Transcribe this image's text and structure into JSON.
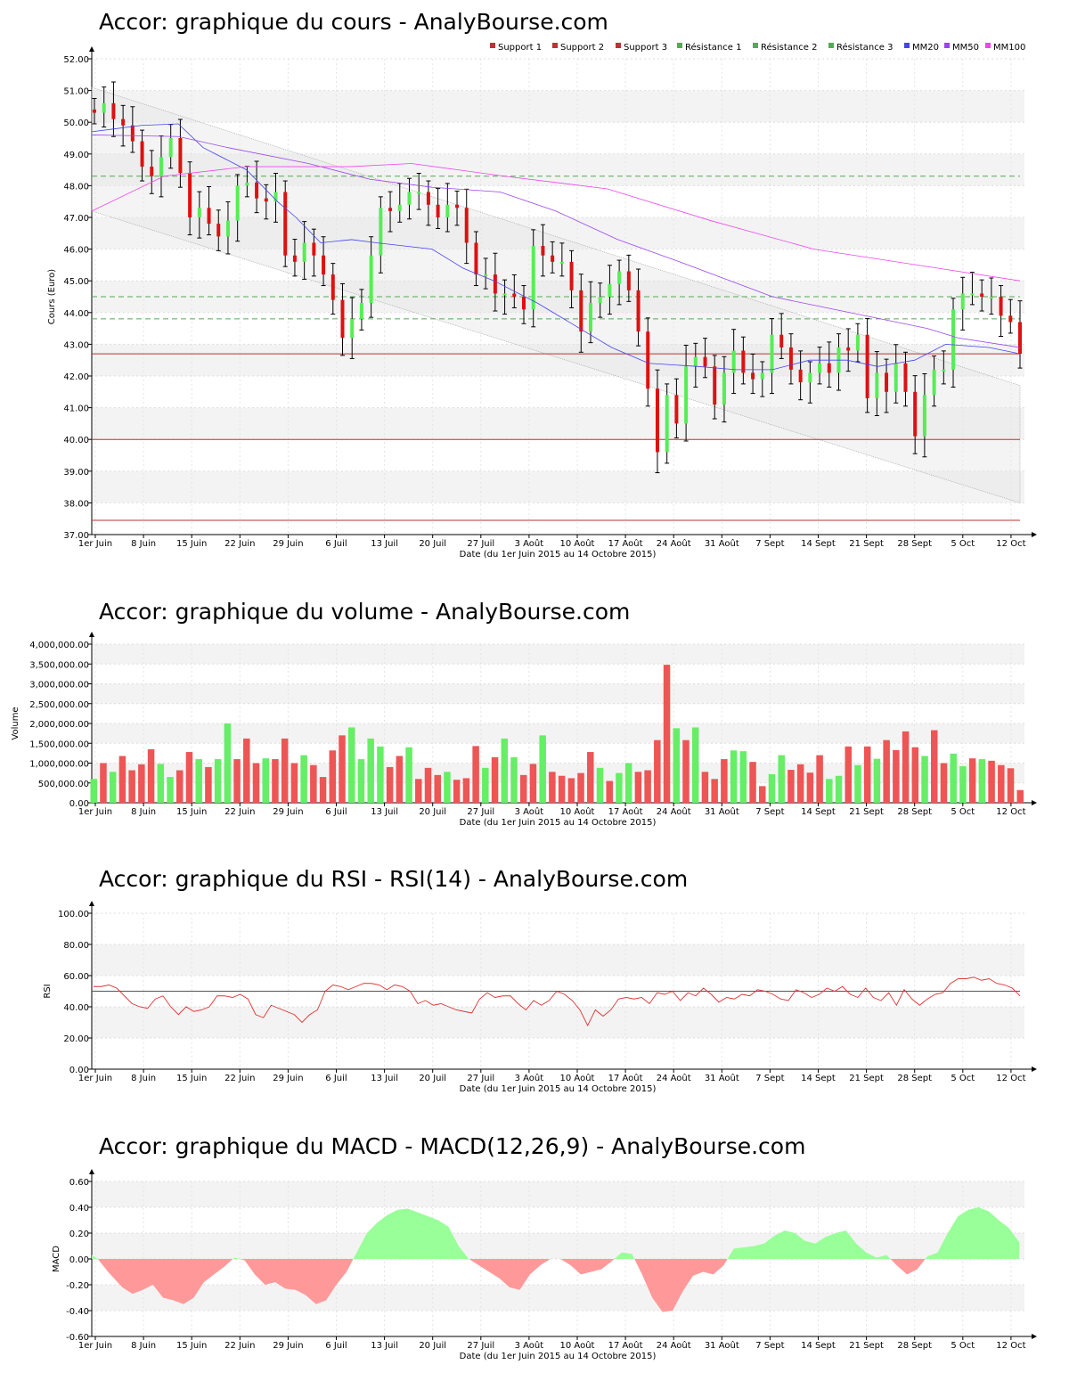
{
  "titles": {
    "price": "Accor: graphique du cours - AnalyBourse.com",
    "volume": "Accor: graphique du volume - AnalyBourse.com",
    "rsi": "Accor: graphique du RSI - RSI(14) - AnalyBourse.com",
    "macd": "Accor: graphique du MACD - MACD(12,26,9) - AnalyBourse.com"
  },
  "colors": {
    "up": "#55ee55",
    "down": "#dd1111",
    "vol_up": "#66ee66",
    "vol_down": "#ee5555",
    "mm20": "#4444ee",
    "mm50": "#9944ee",
    "mm100": "#ee44ee",
    "support": "#bb3333",
    "resistance": "#55aa55",
    "macd_pos": "#99ff99",
    "macd_neg": "#ff9999",
    "rsi_line": "#dd3333"
  },
  "chart_data": [
    {
      "type": "candlestick",
      "title": "Accor: graphique du cours - AnalyBourse.com",
      "ylabel": "Cours (Euro)",
      "xlabel": "Date (du 1er Juin 2015 au 14 Octobre 2015)",
      "ylim": [
        37,
        52
      ],
      "yticks": [
        "37.00",
        "38.00",
        "39.00",
        "40.00",
        "41.00",
        "42.00",
        "43.00",
        "44.00",
        "45.00",
        "46.00",
        "47.00",
        "48.00",
        "49.00",
        "50.00",
        "51.00",
        "52.00"
      ],
      "xtick_labels": [
        "1er Juin",
        "8 Juin",
        "15 Juin",
        "22 Juin",
        "29 Juin",
        "6 Juil",
        "13 Juil",
        "20 Juil",
        "27 Juil",
        "3 Août",
        "10 Août",
        "17 Août",
        "24 Août",
        "31 Août",
        "7 Sept",
        "14 Sept",
        "21 Sept",
        "28 Sept",
        "5 Oct",
        "12 Oct"
      ],
      "legend": [
        "Support 1",
        "Support 2",
        "Support 3",
        "Résistance 1",
        "Résistance 2",
        "Résistance 3",
        "MM20",
        "MM50",
        "MM100"
      ],
      "legend_position": "top-right",
      "support_levels": [
        42.7,
        40.0,
        37.45
      ],
      "resistance_levels": [
        48.3,
        44.5,
        43.8
      ],
      "close": [
        50.3,
        50.6,
        50.1,
        49.9,
        49.4,
        48.6,
        48.3,
        48.9,
        49.5,
        48.4,
        47.0,
        47.3,
        46.8,
        46.4,
        46.9,
        48.0,
        48.1,
        47.6,
        47.5,
        47.8,
        45.8,
        45.6,
        46.2,
        45.8,
        45.2,
        44.4,
        43.2,
        43.8,
        44.3,
        45.8,
        47.3,
        47.2,
        47.4,
        47.8,
        47.8,
        47.4,
        47.0,
        47.4,
        47.3,
        46.2,
        45.2,
        45.2,
        44.6,
        44.6,
        44.5,
        44.1,
        46.1,
        45.8,
        45.6,
        45.6,
        44.7,
        43.4,
        44.3,
        44.5,
        44.9,
        45.3,
        44.7,
        43.4,
        41.6,
        39.6,
        41.4,
        40.5,
        42.3,
        42.6,
        42.3,
        41.1,
        42.1,
        42.8,
        42.1,
        41.9,
        42.1,
        43.3,
        42.9,
        42.2,
        41.8,
        42.1,
        42.4,
        42.1,
        42.9,
        42.8,
        43.3,
        41.3,
        42.1,
        41.5,
        42.4,
        41.5,
        40.1,
        41.4,
        42.2,
        42.2,
        44.1,
        44.6,
        44.6,
        44.5,
        44.5,
        43.9,
        43.7,
        42.7
      ],
      "ma20_points": [
        [
          0,
          49.7
        ],
        [
          8,
          49.9
        ],
        [
          14,
          49.95
        ],
        [
          18,
          49.2
        ],
        [
          25,
          48.5
        ],
        [
          30,
          47.5
        ],
        [
          33,
          47.0
        ],
        [
          37,
          46.2
        ],
        [
          42,
          46.3
        ],
        [
          46,
          46.2
        ],
        [
          55,
          46.0
        ],
        [
          60,
          45.4
        ],
        [
          65,
          45.0
        ],
        [
          72,
          44.3
        ],
        [
          78,
          43.6
        ],
        [
          84,
          42.9
        ],
        [
          90,
          42.4
        ],
        [
          98,
          42.3
        ],
        [
          104,
          42.2
        ],
        [
          110,
          42.2
        ],
        [
          116,
          42.5
        ],
        [
          122,
          42.5
        ],
        [
          127,
          42.3
        ],
        [
          133,
          42.5
        ],
        [
          138,
          43.0
        ],
        [
          145,
          42.9
        ],
        [
          150,
          42.7
        ]
      ],
      "ma50_points": [
        [
          0,
          49.6
        ],
        [
          14,
          49.55
        ],
        [
          22,
          49.2
        ],
        [
          35,
          48.7
        ],
        [
          45,
          48.2
        ],
        [
          55,
          47.95
        ],
        [
          66,
          47.8
        ],
        [
          75,
          47.2
        ],
        [
          85,
          46.3
        ],
        [
          95,
          45.6
        ],
        [
          110,
          44.5
        ],
        [
          125,
          43.9
        ],
        [
          135,
          43.5
        ],
        [
          140,
          43.2
        ],
        [
          150,
          42.9
        ]
      ],
      "ma100_points": [
        [
          0,
          47.2
        ],
        [
          14,
          48.3
        ],
        [
          30,
          48.6
        ],
        [
          50,
          48.6
        ],
        [
          62,
          48.7
        ],
        [
          80,
          48.3
        ],
        [
          100,
          47.9
        ],
        [
          120,
          46.9
        ],
        [
          140,
          46.0
        ],
        [
          160,
          45.5
        ],
        [
          180,
          45.0
        ]
      ]
    },
    {
      "type": "bar",
      "title": "Accor: graphique du volume - AnalyBourse.com",
      "ylabel": "Volume",
      "xlabel": "Date (du 1er Juin 2015 au 14 Octobre 2015)",
      "ylim": [
        0,
        4000000
      ],
      "yticks": [
        "0.00",
        "500,000.00",
        "1,000,000.00",
        "1,500,000.00",
        "2,000,000.00",
        "2,500,000.00",
        "3,000,000.00",
        "3,500,000.00",
        "4,000,000.00"
      ],
      "values": [
        600000,
        1000000,
        780000,
        1180000,
        820000,
        970000,
        1350000,
        980000,
        650000,
        820000,
        1280000,
        1100000,
        900000,
        1100000,
        2000000,
        1100000,
        1620000,
        1000000,
        1120000,
        1100000,
        1620000,
        1000000,
        1200000,
        950000,
        650000,
        1320000,
        1700000,
        1900000,
        1100000,
        1620000,
        1420000,
        900000,
        1180000,
        1400000,
        600000,
        880000,
        700000,
        780000,
        580000,
        620000,
        1430000,
        880000,
        1150000,
        1620000,
        1150000,
        700000,
        980000,
        1700000,
        780000,
        680000,
        620000,
        750000,
        1280000,
        880000,
        550000,
        750000,
        1000000,
        780000,
        820000,
        1580000,
        3480000,
        1880000,
        1580000,
        1900000,
        780000,
        600000,
        1100000,
        1320000,
        1300000,
        1030000,
        420000,
        720000,
        1200000,
        830000,
        970000,
        760000,
        1200000,
        600000,
        680000,
        1420000,
        950000,
        1420000,
        1110000,
        1580000,
        1330000,
        1800000,
        1400000,
        1180000,
        1830000,
        1000000,
        1240000,
        920000,
        1120000,
        1100000,
        1060000,
        950000,
        870000,
        320000
      ],
      "direction": [
        1,
        0,
        1,
        0,
        0,
        0,
        0,
        1,
        1,
        0,
        0,
        1,
        0,
        1,
        1,
        0,
        0,
        0,
        1,
        0,
        0,
        0,
        1,
        0,
        0,
        0,
        0,
        1,
        1,
        1,
        1,
        0,
        0,
        1,
        0,
        0,
        0,
        1,
        0,
        0,
        0,
        1,
        0,
        1,
        1,
        0,
        0,
        1,
        0,
        0,
        0,
        0,
        0,
        1,
        0,
        1,
        1,
        0,
        0,
        0,
        0,
        1,
        0,
        1,
        0,
        0,
        0,
        1,
        1,
        0,
        0,
        1,
        1,
        0,
        0,
        0,
        0,
        1,
        1,
        0,
        1,
        0,
        1,
        0,
        0,
        0,
        0,
        1,
        0,
        0,
        1,
        1,
        0,
        1,
        0,
        0,
        0,
        0
      ]
    },
    {
      "type": "line",
      "title": "Accor: graphique du RSI - RSI(14) - AnalyBourse.com",
      "ylabel": "RSI",
      "xlabel": "Date (du 1er Juin 2015 au 14 Octobre 2015)",
      "ylim": [
        0,
        100
      ],
      "yticks": [
        "0.00",
        "20.00",
        "40.00",
        "60.00",
        "80.00",
        "100.00"
      ],
      "reference_line": 50,
      "values": [
        53,
        53,
        54,
        52,
        47,
        42,
        40,
        39,
        45,
        47,
        40,
        35,
        40,
        37,
        38,
        40,
        47,
        47,
        46,
        48,
        45,
        35,
        33,
        41,
        39,
        37,
        35,
        30,
        35,
        38,
        50,
        54,
        53,
        51,
        53,
        55,
        55,
        54,
        51,
        54,
        53,
        50,
        42,
        44,
        41,
        42,
        40,
        38,
        37,
        36,
        45,
        49,
        46,
        47,
        47,
        42,
        38,
        44,
        41,
        44,
        50,
        48,
        44,
        38,
        28,
        38,
        34,
        38,
        45,
        46,
        45,
        46,
        42,
        49,
        48,
        50,
        44,
        49,
        47,
        52,
        48,
        43,
        46,
        45,
        48,
        47,
        51,
        50,
        48,
        45,
        44,
        51,
        49,
        46,
        48,
        52,
        50,
        53,
        48,
        46,
        52,
        46,
        44,
        49,
        41,
        51,
        45,
        41,
        45,
        48,
        49,
        55,
        58,
        58,
        59,
        57,
        58,
        55,
        54,
        52,
        47
      ]
    },
    {
      "type": "area",
      "title": "Accor: graphique du MACD - MACD(12,26,9) - AnalyBourse.com",
      "ylabel": "MACD",
      "xlabel": "Date (du 1er Juin 2015 au 14 Octobre 2015)",
      "ylim": [
        -0.6,
        0.6
      ],
      "yticks": [
        "-0.60",
        "-0.40",
        "-0.20",
        "0.00",
        "0.20",
        "0.40",
        "0.60"
      ],
      "points": [
        [
          0,
          0.03
        ],
        [
          3,
          0
        ],
        [
          8,
          -0.1
        ],
        [
          15,
          -0.22
        ],
        [
          20,
          -0.27
        ],
        [
          25,
          -0.24
        ],
        [
          30,
          -0.2
        ],
        [
          35,
          -0.3
        ],
        [
          40,
          -0.32
        ],
        [
          45,
          -0.35
        ],
        [
          50,
          -0.3
        ],
        [
          55,
          -0.18
        ],
        [
          60,
          -0.12
        ],
        [
          65,
          -0.06
        ],
        [
          70,
          0.01
        ],
        [
          75,
          -0.01
        ],
        [
          80,
          -0.12
        ],
        [
          85,
          -0.2
        ],
        [
          90,
          -0.18
        ],
        [
          95,
          -0.23
        ],
        [
          100,
          -0.24
        ],
        [
          105,
          -0.28
        ],
        [
          110,
          -0.35
        ],
        [
          115,
          -0.32
        ],
        [
          120,
          -0.2
        ],
        [
          125,
          -0.1
        ],
        [
          130,
          0.05
        ],
        [
          135,
          0.2
        ],
        [
          140,
          0.28
        ],
        [
          145,
          0.34
        ],
        [
          150,
          0.38
        ],
        [
          155,
          0.39
        ],
        [
          160,
          0.36
        ],
        [
          165,
          0.33
        ],
        [
          170,
          0.3
        ],
        [
          175,
          0.25
        ],
        [
          180,
          0.1
        ],
        [
          185,
          0
        ],
        [
          190,
          -0.05
        ],
        [
          195,
          -0.1
        ],
        [
          200,
          -0.15
        ],
        [
          205,
          -0.22
        ],
        [
          210,
          -0.24
        ],
        [
          215,
          -0.12
        ],
        [
          220,
          -0.05
        ],
        [
          225,
          0
        ],
        [
          230,
          0
        ],
        [
          235,
          -0.05
        ],
        [
          240,
          -0.12
        ],
        [
          245,
          -0.1
        ],
        [
          250,
          -0.08
        ],
        [
          255,
          -0.02
        ],
        [
          260,
          0.05
        ],
        [
          265,
          0.04
        ],
        [
          270,
          -0.12
        ],
        [
          275,
          -0.3
        ],
        [
          280,
          -0.41
        ],
        [
          285,
          -0.4
        ],
        [
          290,
          -0.25
        ],
        [
          295,
          -0.13
        ],
        [
          300,
          -0.1
        ],
        [
          305,
          -0.12
        ],
        [
          310,
          -0.05
        ],
        [
          315,
          0.08
        ],
        [
          320,
          0.09
        ],
        [
          325,
          0.1
        ],
        [
          330,
          0.12
        ],
        [
          335,
          0.18
        ],
        [
          340,
          0.22
        ],
        [
          345,
          0.2
        ],
        [
          350,
          0.14
        ],
        [
          355,
          0.12
        ],
        [
          360,
          0.17
        ],
        [
          365,
          0.2
        ],
        [
          370,
          0.22
        ],
        [
          375,
          0.12
        ],
        [
          380,
          0.05
        ],
        [
          385,
          0.01
        ],
        [
          390,
          0.03
        ],
        [
          395,
          -0.05
        ],
        [
          400,
          -0.12
        ],
        [
          405,
          -0.08
        ],
        [
          410,
          0.02
        ],
        [
          415,
          0.05
        ],
        [
          420,
          0.2
        ],
        [
          425,
          0.33
        ],
        [
          430,
          0.38
        ],
        [
          435,
          0.4
        ],
        [
          440,
          0.37
        ],
        [
          445,
          0.3
        ],
        [
          450,
          0.24
        ],
        [
          455,
          0.13
        ]
      ]
    }
  ]
}
